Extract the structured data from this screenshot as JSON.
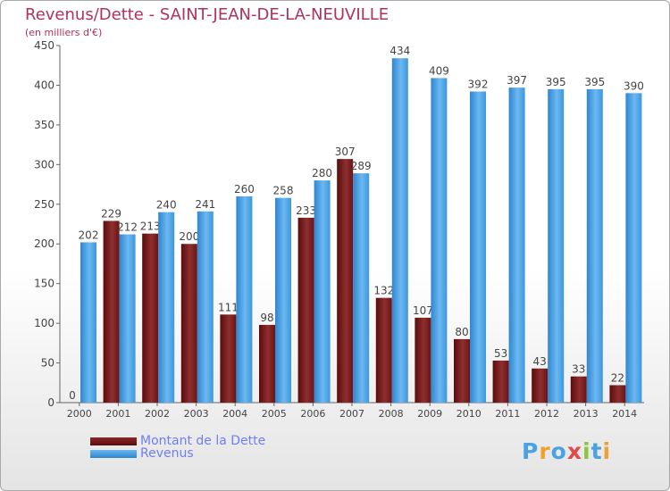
{
  "title": "Revenus/Dette - SAINT-JEAN-DE-LA-NEUVILLE",
  "subtitle": "(en milliers d'€)",
  "legend": {
    "debt_label": "Montant de la Dette",
    "revenue_label": "Revenus"
  },
  "logo": {
    "text": "Proxiti",
    "letter_colors": [
      "#4aa3e0",
      "#f0a030",
      "#4aa3e0",
      "#e04a4a",
      "#8cc63f",
      "#4aa3e0",
      "#f0a030"
    ]
  },
  "colors": {
    "title": "#b03060",
    "debt": "#7a1a1a",
    "revenue": "#3d97db",
    "legend_text": "#6f7ff0"
  },
  "chart_data": {
    "type": "bar",
    "categories": [
      "2000",
      "2001",
      "2002",
      "2003",
      "2004",
      "2005",
      "2006",
      "2007",
      "2008",
      "2009",
      "2010",
      "2011",
      "2012",
      "2013",
      "2014"
    ],
    "series": [
      {
        "name": "Montant de la Dette",
        "values": [
          0,
          229,
          213,
          200,
          111,
          98,
          233,
          307,
          132,
          107,
          80,
          53,
          43,
          33,
          22
        ]
      },
      {
        "name": "Revenus",
        "values": [
          202,
          212,
          240,
          241,
          260,
          258,
          280,
          289,
          434,
          409,
          392,
          397,
          395,
          395,
          390
        ]
      }
    ],
    "ylim": [
      0,
      450
    ],
    "yticks": [
      0,
      50,
      100,
      150,
      200,
      250,
      300,
      350,
      400,
      450
    ],
    "grid": false,
    "legend_position": "bottom-left"
  }
}
